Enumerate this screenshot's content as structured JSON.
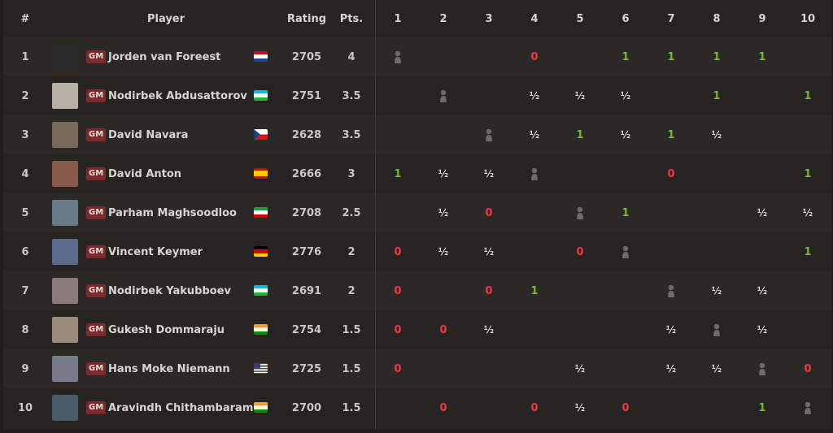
{
  "header": {
    "rank": "#",
    "player": "Player",
    "rating": "Rating",
    "points": "Pts.",
    "rounds": [
      "1",
      "2",
      "3",
      "4",
      "5",
      "6",
      "7",
      "8",
      "9",
      "10"
    ]
  },
  "colors": {
    "win": "#85a94e",
    "loss": "#e04040",
    "draw": "#d6d5d3",
    "title_badge": "#7c2929"
  },
  "players": [
    {
      "rank": "1",
      "title": "GM",
      "name": "Jorden van Foreest",
      "flag": "NL",
      "rating": "2705",
      "points": "4",
      "avatar": "#2a2a2a",
      "results": [
        "self",
        "",
        "",
        "0",
        "",
        "1",
        "1",
        "1",
        "1",
        ""
      ]
    },
    {
      "rank": "2",
      "title": "GM",
      "name": "Nodirbek Abdusattorov",
      "flag": "UZ",
      "rating": "2751",
      "points": "3.5",
      "avatar": "#b8b0a8",
      "results": [
        "",
        "self",
        "",
        "½",
        "½",
        "½",
        "",
        "1",
        "",
        "1"
      ]
    },
    {
      "rank": "3",
      "title": "GM",
      "name": "David Navara",
      "flag": "CZ",
      "rating": "2628",
      "points": "3.5",
      "avatar": "#7a6a5a",
      "results": [
        "",
        "",
        "self",
        "½",
        "1",
        "½",
        "1",
        "½",
        "",
        ""
      ]
    },
    {
      "rank": "4",
      "title": "GM",
      "name": "David Anton",
      "flag": "ES",
      "rating": "2666",
      "points": "3",
      "avatar": "#8a5a4a",
      "results": [
        "1",
        "½",
        "½",
        "self",
        "",
        "",
        "0",
        "",
        "",
        "1"
      ]
    },
    {
      "rank": "5",
      "title": "GM",
      "name": "Parham Maghsoodloo",
      "flag": "IR",
      "rating": "2708",
      "points": "2.5",
      "avatar": "#6a7a8a",
      "results": [
        "",
        "½",
        "0",
        "",
        "self",
        "1",
        "",
        "",
        "½",
        "½"
      ]
    },
    {
      "rank": "6",
      "title": "GM",
      "name": "Vincent Keymer",
      "flag": "DE",
      "rating": "2776",
      "points": "2",
      "avatar": "#5a6a8a",
      "results": [
        "0",
        "½",
        "½",
        "",
        "0",
        "self",
        "",
        "",
        "",
        "1"
      ]
    },
    {
      "rank": "7",
      "title": "GM",
      "name": "Nodirbek Yakubboev",
      "flag": "UZ",
      "rating": "2691",
      "points": "2",
      "avatar": "#8a7a7a",
      "results": [
        "0",
        "",
        "0",
        "1",
        "",
        "",
        "self",
        "½",
        "½",
        ""
      ]
    },
    {
      "rank": "8",
      "title": "GM",
      "name": "Gukesh Dommaraju",
      "flag": "IN",
      "rating": "2754",
      "points": "1.5",
      "avatar": "#9a8a7a",
      "results": [
        "0",
        "0",
        "½",
        "",
        "",
        "",
        "½",
        "self",
        "½",
        ""
      ]
    },
    {
      "rank": "9",
      "title": "GM",
      "name": "Hans Moke Niemann",
      "flag": "US",
      "rating": "2725",
      "points": "1.5",
      "avatar": "#7a7a8a",
      "results": [
        "0",
        "",
        "",
        "",
        "½",
        "",
        "½",
        "½",
        "self",
        "0"
      ]
    },
    {
      "rank": "10",
      "title": "GM",
      "name": "Aravindh Chithambaram",
      "flag": "IN",
      "rating": "2700",
      "points": "1.5",
      "avatar": "#4a5a6a",
      "results": [
        "",
        "0",
        "",
        "0",
        "½",
        "0",
        "",
        "",
        "1",
        "self"
      ]
    }
  ]
}
